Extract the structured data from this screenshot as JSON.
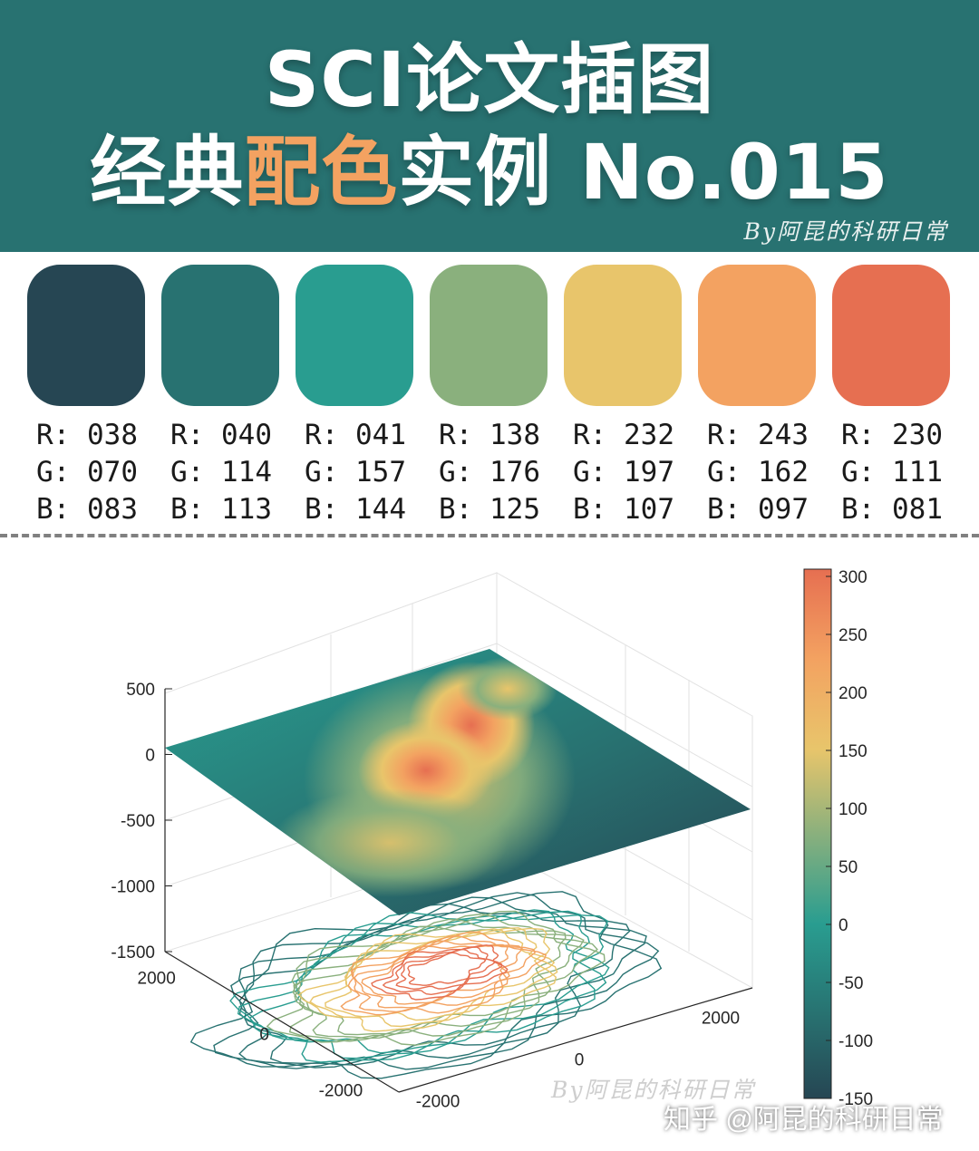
{
  "header": {
    "line1": "SCI论文插图",
    "line2_pre": "经典",
    "line2_accent": "配色",
    "line2_post": "实例 No.015",
    "byline": "By阿昆的科研日常"
  },
  "palette": [
    {
      "hex": "#264653",
      "r": "R: 038",
      "g": "G: 070",
      "b": "B: 083"
    },
    {
      "hex": "#287271",
      "r": "R: 040",
      "g": "G: 114",
      "b": "B: 113"
    },
    {
      "hex": "#299D90",
      "r": "R: 041",
      "g": "G: 157",
      "b": "B: 144"
    },
    {
      "hex": "#8AB07D",
      "r": "R: 138",
      "g": "G: 176",
      "b": "B: 125"
    },
    {
      "hex": "#E8C56B",
      "r": "R: 232",
      "g": "G: 197",
      "b": "B: 107"
    },
    {
      "hex": "#F3A261",
      "r": "R: 243",
      "g": "G: 162",
      "b": "B: 097"
    },
    {
      "hex": "#E66F51",
      "r": "R: 230",
      "g": "G: 111",
      "b": "B: 081"
    }
  ],
  "chart_data": {
    "type": "surface",
    "zlim": [
      -1500,
      500
    ],
    "z_ticks": [
      "500",
      "0",
      "-500",
      "-1000",
      "-1500"
    ],
    "y_ticks": [
      "2000",
      "0",
      "-2000"
    ],
    "x_ticks": [
      "-2000",
      "0",
      "2000"
    ],
    "colorbar": {
      "range": [
        -150,
        300
      ],
      "ticks": [
        "300",
        "250",
        "200",
        "150",
        "100",
        "50",
        "0",
        "-50",
        "-100",
        "-150"
      ]
    },
    "colormap": [
      "#264653",
      "#287271",
      "#299D90",
      "#8AB07D",
      "#E8C56B",
      "#F3A261",
      "#E66F51"
    ],
    "contour_projection": true,
    "grid": true
  },
  "watermarks": {
    "chart_sig": "By阿昆的科研日常",
    "site": "知乎 @阿昆的科研日常"
  }
}
